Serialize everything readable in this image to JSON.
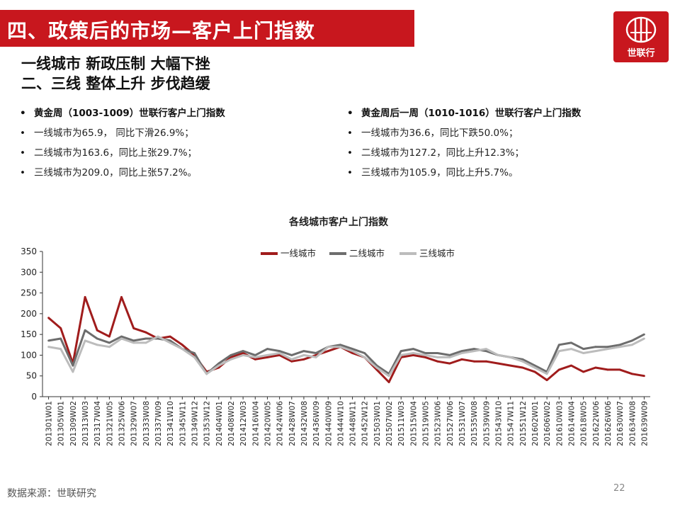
{
  "header": {
    "title": "四、政策后的市场—客户上门指数"
  },
  "logo": {
    "text": "世联行"
  },
  "subheadings": [
    "一线城市  新政压制 大幅下挫",
    "二、三线  整体上升 步伐趋缓"
  ],
  "left_bullets": {
    "title": "黄金周（1003-1009）世联行客户上门指数",
    "items": [
      "一线城市为65.9， 同比下滑26.9%；",
      "二线城市为163.6，同比上张29.7%；",
      "三线城市为209.0，同比上张57.2%。"
    ]
  },
  "right_bullets": {
    "title": "黄金周后一周（1010-1016）世联行客户上门指数",
    "items": [
      "一线城市为36.6，同比下跌50.0%；",
      "二线城市为127.2，同比上升12.3%；",
      "三线城市为105.9，同比上升5.7%。"
    ]
  },
  "footer": {
    "source": "数据来源：世联研究",
    "page": "22"
  },
  "colors": {
    "brand": "#c8171e",
    "tier1": "#a01c1c",
    "tier2": "#6d6d6d",
    "tier3": "#bcbcbc"
  },
  "chart_data": {
    "type": "line",
    "title": "各线城市客户上门指数",
    "xlabel": "",
    "ylabel": "",
    "ylim": [
      0,
      350
    ],
    "yticks": [
      0,
      50,
      100,
      150,
      200,
      250,
      300,
      350
    ],
    "grid": false,
    "legend": "top-center",
    "x": [
      "201301W01",
      "201305W01",
      "201309W02",
      "201313W03",
      "201317W04",
      "201321W05",
      "201325W06",
      "201329W07",
      "201333W08",
      "201337W09",
      "201341W10",
      "201345W11",
      "201349W12",
      "201353W12",
      "201404W01",
      "201408W02",
      "201412W03",
      "201416W04",
      "201420W05",
      "201424W06",
      "201428W07",
      "201432W08",
      "201436W09",
      "201440W09",
      "201444W10",
      "201448W11",
      "201452W12",
      "201503W01",
      "201507W02",
      "201511W03",
      "201515W04",
      "201519W05",
      "201523W06",
      "201527W06",
      "201531W07",
      "201535W08",
      "201539W09",
      "201543W10",
      "201547W11",
      "201551W12",
      "201602W01",
      "201606W02",
      "201610W03",
      "201614W04",
      "201618W05",
      "201622W06",
      "201626W06",
      "201630W07",
      "201634W08",
      "201639W09"
    ],
    "series": [
      {
        "name": "一线城市",
        "values": [
          190,
          165,
          80,
          240,
          160,
          145,
          240,
          165,
          155,
          140,
          145,
          125,
          100,
          60,
          70,
          95,
          105,
          90,
          95,
          100,
          85,
          90,
          100,
          110,
          120,
          105,
          95,
          65,
          35,
          95,
          100,
          95,
          85,
          80,
          90,
          85,
          85,
          80,
          75,
          70,
          60,
          40,
          65,
          75,
          60,
          70,
          65,
          65,
          55,
          50
        ]
      },
      {
        "name": "二线城市",
        "values": [
          135,
          140,
          75,
          160,
          140,
          130,
          145,
          135,
          140,
          140,
          135,
          115,
          105,
          55,
          80,
          100,
          110,
          100,
          115,
          110,
          100,
          110,
          105,
          120,
          125,
          115,
          105,
          75,
          55,
          110,
          115,
          105,
          105,
          100,
          110,
          115,
          110,
          100,
          95,
          90,
          75,
          60,
          125,
          130,
          115,
          120,
          120,
          125,
          135,
          150
        ]
      },
      {
        "name": "三线城市",
        "values": [
          120,
          115,
          60,
          135,
          125,
          120,
          140,
          130,
          130,
          145,
          130,
          115,
          95,
          55,
          75,
          90,
          100,
          95,
          100,
          105,
          90,
          100,
          95,
          120,
          120,
          110,
          95,
          70,
          50,
          100,
          105,
          100,
          95,
          95,
          105,
          110,
          115,
          100,
          95,
          85,
          70,
          55,
          110,
          115,
          105,
          110,
          115,
          120,
          125,
          140
        ]
      }
    ]
  }
}
